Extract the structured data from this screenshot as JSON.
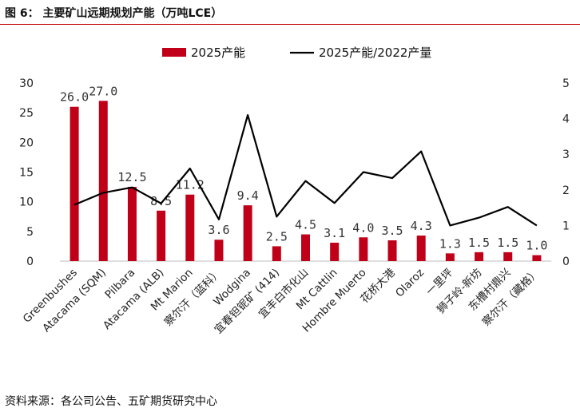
{
  "title": "图 6： 主要矿山远期规划产能（万吨LCE）",
  "source": "资料来源：各公司公告、五矿期货研究中心",
  "colors": {
    "bar": "#c00018",
    "line": "#000000",
    "rule": "#c00000"
  },
  "chart_data": {
    "type": "bar",
    "categories": [
      "Greenbushes",
      "Atacama (SQM)",
      "Pilbara",
      "Atacama (ALB)",
      "Mt Marion",
      "察尔汗（蓝科）",
      "Wodgina",
      "宜春钽铌矿 (414)",
      "宜丰白市化山",
      "Mt Cattlin",
      "Hombre Muerto",
      "花桥大港",
      "Olaroz",
      "一里坪",
      "狮子岭-新坊",
      "东槽村鼎兴",
      "察尔汗（藏格）"
    ],
    "series": [
      {
        "name": "2025产能",
        "type": "bar",
        "axis": "left",
        "values": [
          26.0,
          27.0,
          12.5,
          8.5,
          11.2,
          3.6,
          9.4,
          2.5,
          4.5,
          3.1,
          4.0,
          3.5,
          4.3,
          1.3,
          1.5,
          1.5,
          1.0
        ],
        "labels": [
          "26.0",
          "27.0",
          "12.5",
          "8.5",
          "11.2",
          "3.6",
          "9.4",
          "2.5",
          "4.5",
          "3.1",
          "4.0",
          "3.5",
          "4.3",
          "1.3",
          "1.5",
          "1.5",
          "1.0"
        ]
      },
      {
        "name": "2025产能/2022产量",
        "type": "line",
        "axis": "right",
        "values": [
          1.58,
          1.92,
          2.07,
          1.62,
          2.6,
          1.17,
          4.1,
          1.25,
          2.25,
          1.63,
          2.5,
          2.33,
          3.08,
          1.0,
          1.22,
          1.52,
          1.0
        ]
      }
    ],
    "ylim": [
      0,
      30
    ],
    "yticks": [
      "0",
      "5",
      "10",
      "15",
      "20",
      "25",
      "30"
    ],
    "y2lim": [
      0,
      5
    ],
    "y2ticks": [
      "0",
      "1",
      "2",
      "3",
      "4",
      "5"
    ],
    "legend": "top-center",
    "grid": false
  }
}
